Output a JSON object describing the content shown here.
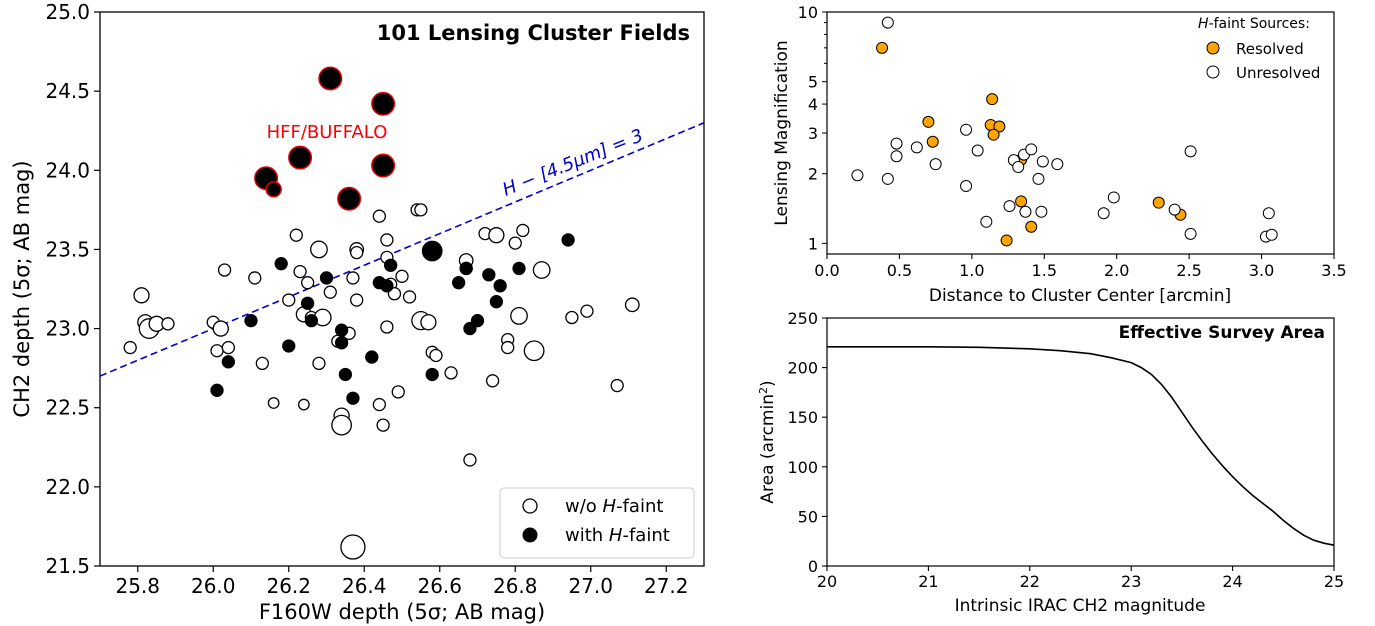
{
  "chart_data": [
    {
      "id": "left",
      "type": "scatter",
      "title": "101 Lensing Cluster Fields",
      "xlabel": "F160W depth (5σ; AB mag)",
      "ylabel": "CH2 depth (5σ; AB mag)",
      "xlim": [
        25.7,
        27.3
      ],
      "ylim": [
        21.5,
        25.0
      ],
      "xticks": [
        25.8,
        26.0,
        26.2,
        26.4,
        26.6,
        26.8,
        27.0,
        27.2
      ],
      "yticks": [
        21.5,
        22.0,
        22.5,
        23.0,
        23.5,
        24.0,
        24.5,
        25.0
      ],
      "grid": false,
      "legend_position": "bottom-right",
      "legend": [
        {
          "marker": "open-circle",
          "label_prefix": "w/o ",
          "label_italic": "H",
          "label_suffix": "-faint"
        },
        {
          "marker": "filled-circle",
          "label_prefix": "with ",
          "label_italic": "H",
          "label_suffix": "-faint"
        }
      ],
      "annotations": [
        {
          "text": "HFF/BUFFALO",
          "color": "#ff0000",
          "x": 26.3,
          "y": 24.25
        },
        {
          "text": "H − [4.5μm] = 3",
          "color": "#0000cc",
          "x": 26.85,
          "y": 24.02
        }
      ],
      "reference_line": {
        "color": "#0000cc",
        "style": "dashed",
        "x": [
          25.7,
          27.3
        ],
        "y": [
          22.7,
          24.3
        ]
      },
      "series": [
        {
          "marker": "open",
          "points": [
            [
              25.81,
              23.21,
              1
            ],
            [
              25.82,
              23.04,
              1
            ],
            [
              25.83,
              23.0,
              1.3
            ],
            [
              25.85,
              23.03,
              1
            ],
            [
              25.88,
              23.03,
              0.8
            ],
            [
              25.78,
              22.88,
              0.8
            ],
            [
              26.0,
              23.04,
              0.8
            ],
            [
              26.01,
              22.86,
              0.8
            ],
            [
              26.02,
              23.0,
              1
            ],
            [
              26.03,
              23.37,
              0.8
            ],
            [
              26.04,
              22.88,
              0.8
            ],
            [
              26.11,
              23.32,
              0.8
            ],
            [
              26.13,
              22.78,
              0.8
            ],
            [
              26.16,
              22.53,
              0.7
            ],
            [
              26.2,
              23.18,
              0.8
            ],
            [
              26.22,
              23.59,
              0.8
            ],
            [
              26.23,
              23.36,
              0.8
            ],
            [
              26.24,
              23.09,
              1
            ],
            [
              26.25,
              23.29,
              0.8
            ],
            [
              26.26,
              23.07,
              0.8
            ],
            [
              26.28,
              23.5,
              1.1
            ],
            [
              26.29,
              23.07,
              1.1
            ],
            [
              26.28,
              22.78,
              0.8
            ],
            [
              26.24,
              22.52,
              0.7
            ],
            [
              26.31,
              23.23,
              0.8
            ],
            [
              26.33,
              22.92,
              0.8
            ],
            [
              26.34,
              22.45,
              1
            ],
            [
              26.34,
              22.39,
              1.3
            ],
            [
              26.36,
              22.97,
              0.8
            ],
            [
              26.37,
              23.32,
              0.8
            ],
            [
              26.38,
              23.5,
              0.9
            ],
            [
              26.38,
              23.48,
              0.8
            ],
            [
              26.38,
              23.18,
              0.8
            ],
            [
              26.44,
              23.71,
              0.8
            ],
            [
              26.44,
              22.52,
              0.8
            ],
            [
              26.45,
              22.39,
              0.8
            ],
            [
              26.46,
              23.56,
              0.8
            ],
            [
              26.46,
              23.45,
              0.8
            ],
            [
              26.46,
              23.01,
              0.8
            ],
            [
              26.47,
              23.28,
              0.8
            ],
            [
              26.48,
              23.22,
              0.8
            ],
            [
              26.49,
              22.6,
              0.8
            ],
            [
              26.5,
              23.33,
              0.8
            ],
            [
              26.52,
              23.2,
              0.8
            ],
            [
              26.54,
              23.75,
              0.8
            ],
            [
              26.55,
              23.75,
              0.8
            ],
            [
              26.55,
              23.05,
              1.2
            ],
            [
              26.57,
              23.04,
              1
            ],
            [
              26.58,
              22.85,
              0.8
            ],
            [
              26.59,
              22.83,
              0.8
            ],
            [
              26.63,
              22.72,
              0.8
            ],
            [
              26.67,
              23.43,
              0.9
            ],
            [
              26.67,
              23.38,
              0.8
            ],
            [
              26.68,
              22.17,
              0.8
            ],
            [
              26.72,
              23.6,
              0.8
            ],
            [
              26.75,
              23.59,
              1
            ],
            [
              26.74,
              22.67,
              0.8
            ],
            [
              26.78,
              22.93,
              0.8
            ],
            [
              26.78,
              22.88,
              0.8
            ],
            [
              26.8,
              23.54,
              0.8
            ],
            [
              26.82,
              23.62,
              0.8
            ],
            [
              26.81,
              23.08,
              1.1
            ],
            [
              26.85,
              22.86,
              1.3
            ],
            [
              26.87,
              23.37,
              1.1
            ],
            [
              26.95,
              23.07,
              0.8
            ],
            [
              26.99,
              23.11,
              0.8
            ],
            [
              27.07,
              22.64,
              0.8
            ],
            [
              27.11,
              23.15,
              0.9
            ],
            [
              26.37,
              21.62,
              1.6
            ]
          ]
        },
        {
          "marker": "filled",
          "points": [
            [
              26.01,
              22.61,
              0.8
            ],
            [
              26.04,
              22.79,
              0.8
            ],
            [
              26.1,
              23.05,
              0.8
            ],
            [
              26.18,
              23.41,
              0.8
            ],
            [
              26.2,
              22.89,
              0.8
            ],
            [
              26.25,
              23.16,
              0.8
            ],
            [
              26.26,
              23.05,
              0.8
            ],
            [
              26.3,
              23.32,
              0.8
            ],
            [
              26.34,
              22.99,
              0.8
            ],
            [
              26.34,
              22.91,
              0.8
            ],
            [
              26.35,
              22.71,
              0.8
            ],
            [
              26.37,
              22.56,
              0.8
            ],
            [
              26.42,
              22.82,
              0.8
            ],
            [
              26.44,
              23.29,
              0.8
            ],
            [
              26.46,
              23.27,
              0.8
            ],
            [
              26.47,
              23.4,
              0.8
            ],
            [
              26.58,
              23.49,
              1.3
            ],
            [
              26.58,
              22.71,
              0.8
            ],
            [
              26.65,
              23.29,
              0.8
            ],
            [
              26.67,
              23.38,
              0.8
            ],
            [
              26.68,
              23.0,
              0.8
            ],
            [
              26.7,
              23.05,
              0.8
            ],
            [
              26.73,
              23.34,
              0.8
            ],
            [
              26.75,
              23.17,
              0.8
            ],
            [
              26.76,
              23.27,
              0.8
            ],
            [
              26.81,
              23.38,
              0.8
            ],
            [
              26.94,
              23.56,
              0.8
            ]
          ]
        },
        {
          "marker": "filled-redring",
          "points": [
            [
              26.31,
              24.58,
              1.5
            ],
            [
              26.45,
              24.42,
              1.5
            ],
            [
              26.23,
              24.08,
              1.5
            ],
            [
              26.45,
              24.03,
              1.5
            ],
            [
              26.14,
              23.95,
              1.5
            ],
            [
              26.16,
              23.88,
              1
            ],
            [
              26.36,
              23.82,
              1.5
            ]
          ]
        }
      ]
    },
    {
      "id": "top-right",
      "type": "scatter",
      "xlabel": "Distance to Cluster Center [arcmin]",
      "ylabel": "Lensing Magnification",
      "xscale": "linear",
      "yscale": "log",
      "xlim": [
        0.0,
        3.5
      ],
      "ylim": [
        0.9,
        10
      ],
      "xticks": [
        0.0,
        0.5,
        1.0,
        1.5,
        2.0,
        2.5,
        3.0,
        3.5
      ],
      "yticks": [
        1,
        2,
        3,
        4,
        5,
        10
      ],
      "grid": false,
      "legend_position": "top-right",
      "legend_title_italic": "H",
      "legend_title_suffix": "-faint Sources:",
      "legend": [
        {
          "marker": "filled-orange",
          "label": "Resolved"
        },
        {
          "marker": "open",
          "label": "Unresolved"
        }
      ],
      "series": [
        {
          "name": "Resolved",
          "color": "#ffa500",
          "points": [
            [
              0.38,
              7.0
            ],
            [
              0.7,
              3.35
            ],
            [
              0.73,
              2.75
            ],
            [
              1.14,
              4.2
            ],
            [
              1.13,
              3.25
            ],
            [
              1.19,
              3.2
            ],
            [
              1.15,
              2.95
            ],
            [
              1.34,
              2.3
            ],
            [
              1.34,
              1.52
            ],
            [
              1.41,
              1.18
            ],
            [
              1.24,
              1.03
            ],
            [
              2.29,
              1.5
            ],
            [
              2.44,
              1.33
            ]
          ]
        },
        {
          "name": "Unresolved",
          "color": "#ffffff",
          "points": [
            [
              0.42,
              9.0
            ],
            [
              0.21,
              1.97
            ],
            [
              0.42,
              1.9
            ],
            [
              0.48,
              2.7
            ],
            [
              0.48,
              2.38
            ],
            [
              0.62,
              2.6
            ],
            [
              0.75,
              2.2
            ],
            [
              0.96,
              3.1
            ],
            [
              1.04,
              2.52
            ],
            [
              0.96,
              1.77
            ],
            [
              1.1,
              1.24
            ],
            [
              1.26,
              1.45
            ],
            [
              1.29,
              2.29
            ],
            [
              1.32,
              2.14
            ],
            [
              1.36,
              2.42
            ],
            [
              1.37,
              1.37
            ],
            [
              1.41,
              2.55
            ],
            [
              1.46,
              1.9
            ],
            [
              1.48,
              1.37
            ],
            [
              1.49,
              2.26
            ],
            [
              1.59,
              2.2
            ],
            [
              1.91,
              1.35
            ],
            [
              1.98,
              1.58
            ],
            [
              2.4,
              1.4
            ],
            [
              2.51,
              1.1
            ],
            [
              2.51,
              2.5
            ],
            [
              3.03,
              1.07
            ],
            [
              3.05,
              1.35
            ],
            [
              3.07,
              1.09
            ]
          ]
        }
      ]
    },
    {
      "id": "bottom-right",
      "type": "line",
      "title": "Effective Survey Area",
      "xlabel": "Intrinsic IRAC CH2 magnitude",
      "ylabel": "Area (arcmin²)",
      "xlim": [
        20,
        25
      ],
      "ylim": [
        0,
        250
      ],
      "xticks": [
        20,
        21,
        22,
        23,
        24,
        25
      ],
      "yticks": [
        0,
        50,
        100,
        150,
        200,
        250
      ],
      "grid": false,
      "x": [
        20.0,
        20.5,
        21.0,
        21.5,
        22.0,
        22.3,
        22.6,
        22.8,
        23.0,
        23.1,
        23.2,
        23.3,
        23.4,
        23.5,
        23.6,
        23.7,
        23.8,
        23.9,
        24.0,
        24.1,
        24.2,
        24.3,
        24.4,
        24.5,
        24.6,
        24.7,
        24.8,
        24.9,
        25.0
      ],
      "y": [
        221,
        221,
        221,
        220.5,
        219,
        217,
        214,
        210,
        205,
        200,
        193,
        183,
        170,
        155,
        140,
        126,
        113,
        101,
        90,
        80,
        71,
        63,
        55,
        46,
        38,
        31,
        26,
        23,
        21
      ]
    }
  ]
}
